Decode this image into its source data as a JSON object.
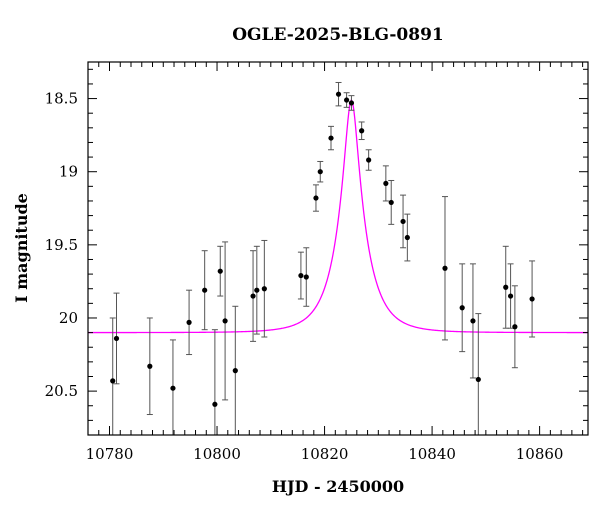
{
  "chart_data": {
    "type": "scatter",
    "title": "OGLE-2025-BLG-0891",
    "xlabel": "HJD - 2450000",
    "ylabel": "I magnitude",
    "xlim": [
      10776,
      10869
    ],
    "ylim": [
      18.25,
      20.8
    ],
    "y_inverted": true,
    "grid": false,
    "x_ticks": [
      10780,
      10800,
      10820,
      10840,
      10860
    ],
    "x_tick_labels": [
      "10780",
      "10800",
      "10820",
      "10840",
      "10860"
    ],
    "y_ticks": [
      18.5,
      19,
      19.5,
      20,
      20.5
    ],
    "y_tick_labels": [
      "18.5",
      "19",
      "19.5",
      "20",
      "20.5"
    ],
    "colors": {
      "model": "#ff00ff",
      "points": "#000000",
      "errorbars": "#555555"
    },
    "model": {
      "type": "microlensing-fit",
      "t0": 10825.0,
      "baseline_mag": 20.1,
      "peak_mag": 18.51,
      "width_days": 5.0
    },
    "series": [
      {
        "points": [
          {
            "x": 10780.6,
            "y": 20.43,
            "err": 0.43
          },
          {
            "x": 10781.3,
            "y": 20.14,
            "err": 0.31
          },
          {
            "x": 10787.5,
            "y": 20.33,
            "err": 0.33
          },
          {
            "x": 10791.8,
            "y": 20.48,
            "err": 0.33
          },
          {
            "x": 10794.8,
            "y": 20.03,
            "err": 0.22
          },
          {
            "x": 10797.7,
            "y": 19.81,
            "err": 0.27
          },
          {
            "x": 10799.6,
            "y": 20.59,
            "err": 0.51
          },
          {
            "x": 10800.6,
            "y": 19.68,
            "err": 0.17
          },
          {
            "x": 10801.5,
            "y": 20.02,
            "err": 0.54
          },
          {
            "x": 10803.4,
            "y": 20.36,
            "err": 0.44
          },
          {
            "x": 10806.7,
            "y": 19.85,
            "err": 0.31
          },
          {
            "x": 10807.4,
            "y": 19.81,
            "err": 0.3
          },
          {
            "x": 10808.8,
            "y": 19.8,
            "err": 0.33
          },
          {
            "x": 10815.6,
            "y": 19.71,
            "err": 0.16
          },
          {
            "x": 10816.6,
            "y": 19.72,
            "err": 0.2
          },
          {
            "x": 10818.4,
            "y": 19.18,
            "err": 0.09
          },
          {
            "x": 10819.2,
            "y": 19.0,
            "err": 0.07
          },
          {
            "x": 10821.2,
            "y": 18.77,
            "err": 0.08
          },
          {
            "x": 10822.6,
            "y": 18.47,
            "err": 0.08
          },
          {
            "x": 10824.1,
            "y": 18.51,
            "err": 0.05
          },
          {
            "x": 10825.0,
            "y": 18.53,
            "err": 0.05
          },
          {
            "x": 10826.9,
            "y": 18.72,
            "err": 0.06
          },
          {
            "x": 10828.2,
            "y": 18.92,
            "err": 0.07
          },
          {
            "x": 10831.4,
            "y": 19.08,
            "err": 0.12
          },
          {
            "x": 10832.4,
            "y": 19.21,
            "err": 0.15
          },
          {
            "x": 10834.6,
            "y": 19.34,
            "err": 0.18
          },
          {
            "x": 10835.4,
            "y": 19.45,
            "err": 0.16
          },
          {
            "x": 10842.4,
            "y": 19.66,
            "err": 0.49
          },
          {
            "x": 10845.6,
            "y": 19.93,
            "err": 0.3
          },
          {
            "x": 10847.6,
            "y": 20.02,
            "err": 0.39
          },
          {
            "x": 10848.6,
            "y": 20.42,
            "err": 0.45
          },
          {
            "x": 10853.7,
            "y": 19.79,
            "err": 0.28
          },
          {
            "x": 10854.6,
            "y": 19.85,
            "err": 0.22
          },
          {
            "x": 10855.4,
            "y": 20.06,
            "err": 0.28
          },
          {
            "x": 10858.6,
            "y": 19.87,
            "err": 0.26
          }
        ]
      }
    ]
  }
}
